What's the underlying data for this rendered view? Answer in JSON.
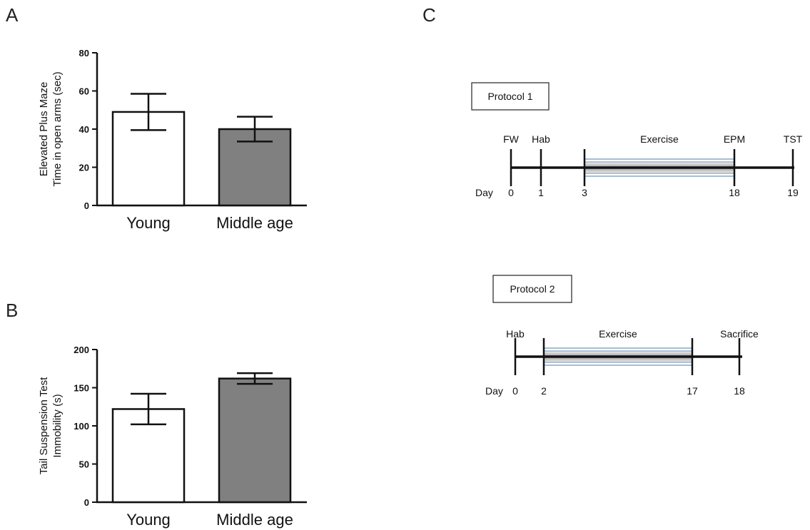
{
  "panels": {
    "a": "A",
    "b": "B",
    "c": "C"
  },
  "chart_data": [
    {
      "type": "bar",
      "panel": "A",
      "categories": [
        "Young",
        "Middle age"
      ],
      "values": [
        49,
        40
      ],
      "error": [
        9.5,
        6.5
      ],
      "ylabel": "Elevated Plus Maze Time in open arms (sec)",
      "ylabel_lines": [
        "Elevated Plus Maze",
        "Time in open arms (sec)"
      ],
      "ylim": [
        0,
        80
      ],
      "yticks": [
        0,
        20,
        40,
        60,
        80
      ],
      "bar_colors": [
        "#ffffff",
        "#808080"
      ]
    },
    {
      "type": "bar",
      "panel": "B",
      "categories": [
        "Young",
        "Middle age"
      ],
      "values": [
        122,
        162
      ],
      "error": [
        20,
        7
      ],
      "ylabel": "Tail Suspension Test Immobility (s)",
      "ylabel_lines": [
        "Tail Suspension Test",
        "Immobility (s)"
      ],
      "ylim": [
        0,
        200
      ],
      "yticks": [
        0,
        50,
        100,
        150,
        200
      ],
      "bar_colors": [
        "#ffffff",
        "#808080"
      ]
    }
  ],
  "protocols": [
    {
      "name": "Protocol 1",
      "day_prefix": "Day",
      "events": [
        {
          "label": "FW",
          "day": "0"
        },
        {
          "label": "Hab",
          "day": "1"
        },
        {
          "label": "",
          "day": "3"
        },
        {
          "label": "EPM",
          "day": "18"
        },
        {
          "label": "TST",
          "day": "19"
        }
      ],
      "period": {
        "label": "Exercise",
        "from_day": "3",
        "to_day": "18"
      }
    },
    {
      "name": "Protocol 2",
      "day_prefix": "Day",
      "events": [
        {
          "label": "Hab",
          "day": "0"
        },
        {
          "label": "",
          "day": "2"
        },
        {
          "label": "",
          "day": "17"
        },
        {
          "label": "Sacrifice",
          "day": "18"
        }
      ],
      "period": {
        "label": "Exercise",
        "from_day": "2",
        "to_day": "17"
      }
    }
  ]
}
